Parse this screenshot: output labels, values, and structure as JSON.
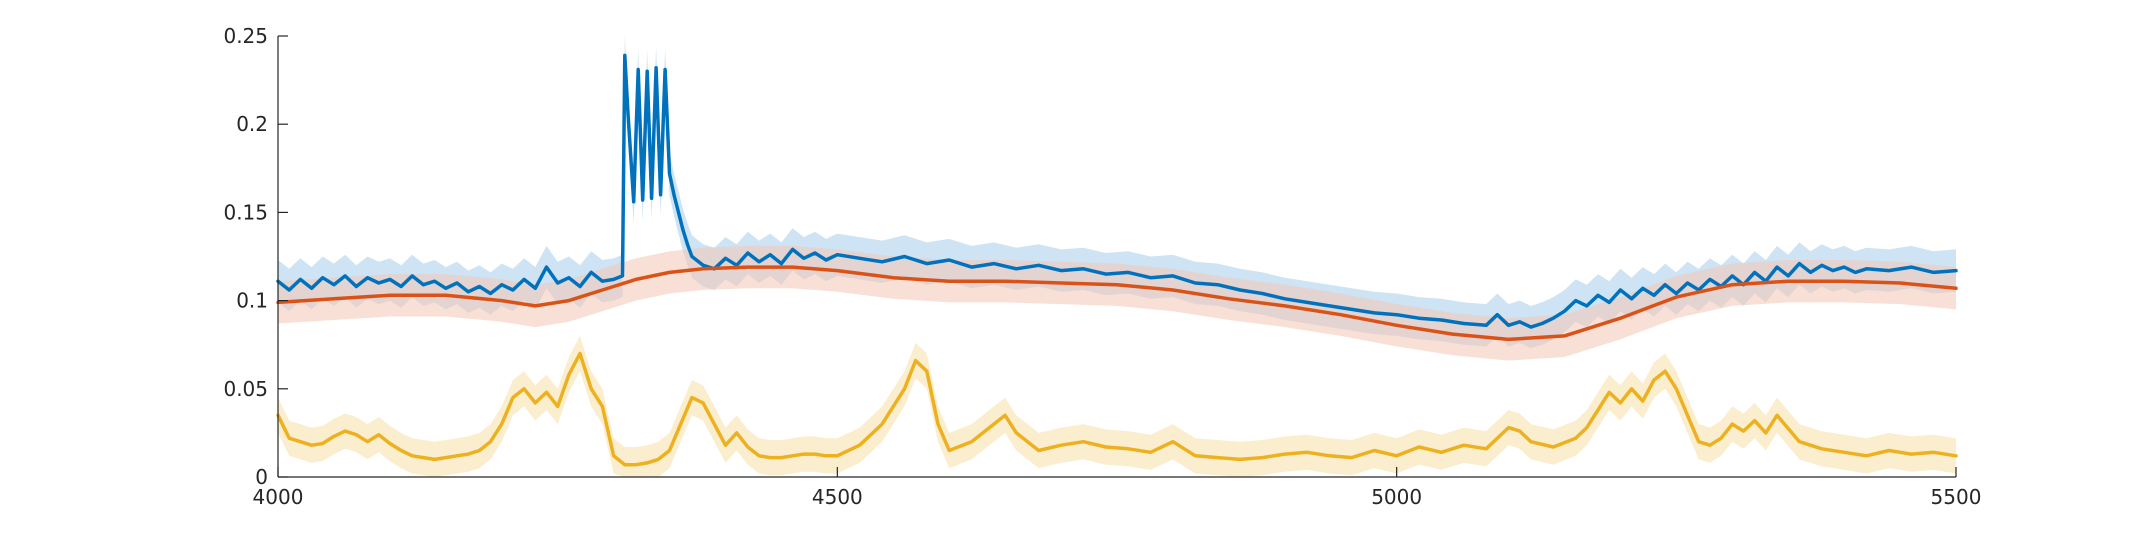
{
  "chart_data": {
    "type": "line",
    "title": "",
    "xlabel": "",
    "ylabel": "",
    "xlim": [
      4000,
      5500
    ],
    "ylim": [
      0,
      0.25
    ],
    "grid": false,
    "legend": "none",
    "x_ticks": [
      4000,
      4500,
      5000,
      5500
    ],
    "x_tick_labels": [
      "4000",
      "4500",
      "5000",
      "5500"
    ],
    "y_ticks": [
      0,
      0.05,
      0.1,
      0.15,
      0.2,
      0.25
    ],
    "y_tick_labels": [
      "0",
      "0.05",
      "0.1",
      "0.15",
      "0.2",
      "0.25"
    ],
    "colors": {
      "blue": "#0072BD",
      "blue_band": "#A6CCE9",
      "orange": "#D95319",
      "orange_band": "#F4C7B4",
      "yellow": "#EDB120",
      "yellow_band": "#F7E0A6"
    },
    "series": [
      {
        "color_key": "blue",
        "band": 0.012,
        "x": [
          4000,
          4010,
          4020,
          4030,
          4040,
          4050,
          4060,
          4070,
          4080,
          4090,
          4100,
          4110,
          4120,
          4130,
          4140,
          4150,
          4160,
          4170,
          4180,
          4190,
          4200,
          4210,
          4220,
          4230,
          4240,
          4250,
          4260,
          4270,
          4280,
          4290,
          4300,
          4308,
          4310,
          4313,
          4318,
          4322,
          4326,
          4330,
          4334,
          4338,
          4342,
          4346,
          4350,
          4354,
          4358,
          4362,
          4366,
          4370,
          4380,
          4390,
          4400,
          4410,
          4420,
          4430,
          4440,
          4450,
          4460,
          4470,
          4480,
          4490,
          4500,
          4520,
          4540,
          4560,
          4580,
          4600,
          4620,
          4640,
          4660,
          4680,
          4700,
          4720,
          4740,
          4760,
          4780,
          4800,
          4820,
          4840,
          4860,
          4880,
          4900,
          4920,
          4940,
          4960,
          4980,
          5000,
          5020,
          5040,
          5060,
          5080,
          5090,
          5100,
          5110,
          5120,
          5130,
          5140,
          5150,
          5160,
          5170,
          5180,
          5190,
          5200,
          5210,
          5220,
          5230,
          5240,
          5250,
          5260,
          5270,
          5280,
          5290,
          5300,
          5310,
          5320,
          5330,
          5340,
          5350,
          5360,
          5370,
          5380,
          5390,
          5400,
          5410,
          5420,
          5440,
          5460,
          5480,
          5500
        ],
        "y": [
          0.111,
          0.106,
          0.112,
          0.107,
          0.113,
          0.109,
          0.114,
          0.108,
          0.113,
          0.11,
          0.112,
          0.108,
          0.114,
          0.109,
          0.111,
          0.107,
          0.11,
          0.105,
          0.108,
          0.104,
          0.109,
          0.106,
          0.112,
          0.107,
          0.119,
          0.11,
          0.113,
          0.108,
          0.116,
          0.111,
          0.112,
          0.114,
          0.239,
          0.205,
          0.156,
          0.231,
          0.157,
          0.23,
          0.158,
          0.232,
          0.16,
          0.231,
          0.172,
          0.16,
          0.15,
          0.14,
          0.132,
          0.125,
          0.12,
          0.118,
          0.124,
          0.12,
          0.127,
          0.122,
          0.126,
          0.121,
          0.129,
          0.124,
          0.127,
          0.123,
          0.126,
          0.124,
          0.122,
          0.125,
          0.121,
          0.123,
          0.119,
          0.121,
          0.118,
          0.12,
          0.117,
          0.118,
          0.115,
          0.116,
          0.113,
          0.114,
          0.11,
          0.109,
          0.106,
          0.104,
          0.101,
          0.099,
          0.097,
          0.095,
          0.093,
          0.092,
          0.09,
          0.089,
          0.087,
          0.086,
          0.092,
          0.086,
          0.088,
          0.085,
          0.087,
          0.09,
          0.094,
          0.1,
          0.097,
          0.103,
          0.099,
          0.106,
          0.101,
          0.107,
          0.103,
          0.109,
          0.104,
          0.11,
          0.106,
          0.112,
          0.108,
          0.114,
          0.109,
          0.116,
          0.111,
          0.119,
          0.114,
          0.121,
          0.116,
          0.12,
          0.117,
          0.119,
          0.116,
          0.118,
          0.117,
          0.119,
          0.116,
          0.117
        ]
      },
      {
        "color_key": "orange",
        "band": 0.012,
        "x": [
          4000,
          4050,
          4100,
          4150,
          4200,
          4230,
          4260,
          4290,
          4320,
          4350,
          4380,
          4420,
          4460,
          4500,
          4550,
          4600,
          4650,
          4700,
          4750,
          4800,
          4850,
          4900,
          4950,
          5000,
          5050,
          5100,
          5150,
          5200,
          5250,
          5300,
          5350,
          5400,
          5450,
          5500
        ],
        "y": [
          0.099,
          0.101,
          0.103,
          0.103,
          0.1,
          0.097,
          0.1,
          0.106,
          0.112,
          0.116,
          0.118,
          0.119,
          0.119,
          0.117,
          0.113,
          0.111,
          0.111,
          0.11,
          0.109,
          0.106,
          0.101,
          0.097,
          0.092,
          0.086,
          0.081,
          0.078,
          0.08,
          0.09,
          0.102,
          0.109,
          0.111,
          0.111,
          0.11,
          0.107
        ]
      },
      {
        "color_key": "yellow",
        "band": 0.01,
        "x": [
          4000,
          4010,
          4020,
          4030,
          4040,
          4050,
          4060,
          4070,
          4080,
          4090,
          4100,
          4110,
          4120,
          4130,
          4140,
          4150,
          4160,
          4170,
          4180,
          4190,
          4200,
          4210,
          4220,
          4230,
          4240,
          4250,
          4260,
          4270,
          4280,
          4290,
          4300,
          4310,
          4320,
          4330,
          4340,
          4350,
          4360,
          4370,
          4380,
          4390,
          4400,
          4410,
          4420,
          4430,
          4440,
          4450,
          4460,
          4470,
          4480,
          4490,
          4500,
          4520,
          4540,
          4560,
          4570,
          4580,
          4590,
          4600,
          4620,
          4640,
          4650,
          4660,
          4680,
          4700,
          4720,
          4740,
          4760,
          4780,
          4800,
          4820,
          4840,
          4860,
          4880,
          4900,
          4920,
          4940,
          4960,
          4980,
          5000,
          5020,
          5040,
          5060,
          5080,
          5100,
          5110,
          5120,
          5140,
          5160,
          5170,
          5180,
          5190,
          5200,
          5210,
          5220,
          5230,
          5240,
          5250,
          5260,
          5270,
          5280,
          5290,
          5300,
          5310,
          5320,
          5330,
          5340,
          5360,
          5380,
          5400,
          5420,
          5440,
          5460,
          5480,
          5500
        ],
        "y": [
          0.035,
          0.022,
          0.02,
          0.018,
          0.019,
          0.023,
          0.026,
          0.024,
          0.02,
          0.024,
          0.019,
          0.015,
          0.012,
          0.011,
          0.01,
          0.011,
          0.012,
          0.013,
          0.015,
          0.02,
          0.03,
          0.045,
          0.05,
          0.042,
          0.048,
          0.04,
          0.058,
          0.07,
          0.05,
          0.04,
          0.012,
          0.007,
          0.007,
          0.008,
          0.01,
          0.015,
          0.03,
          0.045,
          0.042,
          0.03,
          0.018,
          0.025,
          0.017,
          0.012,
          0.011,
          0.011,
          0.012,
          0.013,
          0.013,
          0.012,
          0.012,
          0.018,
          0.03,
          0.05,
          0.066,
          0.06,
          0.03,
          0.015,
          0.02,
          0.03,
          0.035,
          0.025,
          0.015,
          0.018,
          0.02,
          0.017,
          0.016,
          0.014,
          0.02,
          0.012,
          0.011,
          0.01,
          0.011,
          0.013,
          0.014,
          0.012,
          0.011,
          0.015,
          0.012,
          0.017,
          0.014,
          0.018,
          0.016,
          0.028,
          0.026,
          0.02,
          0.017,
          0.022,
          0.028,
          0.038,
          0.048,
          0.042,
          0.05,
          0.043,
          0.055,
          0.06,
          0.05,
          0.035,
          0.02,
          0.018,
          0.022,
          0.03,
          0.026,
          0.032,
          0.025,
          0.035,
          0.02,
          0.016,
          0.014,
          0.012,
          0.015,
          0.013,
          0.014,
          0.012
        ]
      }
    ]
  }
}
